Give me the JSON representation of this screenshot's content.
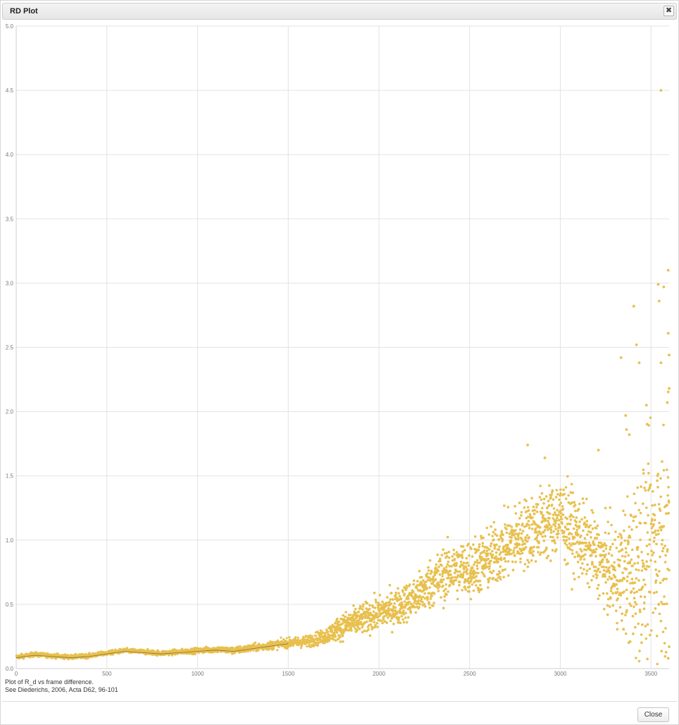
{
  "dialog": {
    "title": "RD Plot",
    "close_icon": "close-icon",
    "close_glyph": "✖",
    "close_button_label": "Close"
  },
  "caption": {
    "line1": "Plot of R_d vs frame difference.",
    "line2": "See Diederichs, 2006, Acta D62, 96-101"
  },
  "chart_data": {
    "type": "scatter",
    "title": "",
    "xlabel": "",
    "ylabel": "",
    "xlim": [
      0,
      3600
    ],
    "ylim": [
      0,
      5.0
    ],
    "xticks": [
      "0",
      "500",
      "1000",
      "1500",
      "2000",
      "2500",
      "3000",
      "3500"
    ],
    "yticks": [
      "0.0",
      "0.5",
      "1.0",
      "1.5",
      "2.0",
      "2.5",
      "3.0",
      "3.5",
      "4.0",
      "4.5",
      "5.0"
    ],
    "grid": true,
    "legend": "none",
    "point_color": "#e8c04e",
    "trend_color": "#333333",
    "trend": {
      "x": [
        0,
        100,
        200,
        300,
        400,
        500,
        600,
        700,
        800,
        900,
        1000,
        1100,
        1200,
        1300,
        1400,
        1500,
        1600,
        1700,
        1800,
        1900,
        2000,
        2100,
        2200,
        2300,
        2400,
        2500,
        2600,
        2700,
        2800,
        2900,
        3000,
        3100,
        3200,
        3300,
        3400,
        3500,
        3600
      ],
      "y": [
        0.09,
        0.11,
        0.1,
        0.09,
        0.1,
        0.12,
        0.14,
        0.13,
        0.12,
        0.13,
        0.14,
        0.15,
        0.14,
        0.16,
        0.18,
        0.2,
        0.21,
        0.25,
        0.33,
        0.38,
        0.43,
        0.48,
        0.55,
        0.68,
        0.76,
        0.78,
        0.84,
        0.95,
        1.05,
        1.12,
        1.18,
        1.02,
        0.88,
        0.72,
        0.78,
        0.95,
        1.05
      ]
    },
    "spread": {
      "x": [
        0,
        500,
        1000,
        1500,
        1700,
        1800,
        2000,
        2200,
        2300,
        2500,
        2700,
        2900,
        3000,
        3100,
        3200,
        3300,
        3400,
        3500,
        3600
      ],
      "y": [
        0.012,
        0.012,
        0.015,
        0.025,
        0.04,
        0.07,
        0.09,
        0.11,
        0.14,
        0.16,
        0.18,
        0.2,
        0.22,
        0.22,
        0.2,
        0.25,
        0.45,
        0.55,
        0.6
      ]
    },
    "point_count": 3600,
    "outliers": [
      {
        "x": 3555,
        "y": 4.5
      },
      {
        "x": 3595,
        "y": 3.1
      },
      {
        "x": 3540,
        "y": 2.99
      },
      {
        "x": 3570,
        "y": 2.97
      },
      {
        "x": 3545,
        "y": 2.86
      },
      {
        "x": 3405,
        "y": 2.82
      },
      {
        "x": 3595,
        "y": 2.61
      },
      {
        "x": 3420,
        "y": 2.52
      },
      {
        "x": 3335,
        "y": 2.42
      },
      {
        "x": 3600,
        "y": 2.44
      },
      {
        "x": 3435,
        "y": 2.38
      },
      {
        "x": 3555,
        "y": 2.38
      },
      {
        "x": 3600,
        "y": 2.18
      },
      {
        "x": 3590,
        "y": 2.07
      },
      {
        "x": 3475,
        "y": 2.05
      },
      {
        "x": 3360,
        "y": 1.97
      },
      {
        "x": 3380,
        "y": 1.82
      },
      {
        "x": 3365,
        "y": 1.86
      },
      {
        "x": 2820,
        "y": 1.74
      },
      {
        "x": 3210,
        "y": 1.7
      },
      {
        "x": 2915,
        "y": 1.64
      },
      {
        "x": 3595,
        "y": 0.08
      },
      {
        "x": 3600,
        "y": 0.17
      },
      {
        "x": 3385,
        "y": 0.21
      }
    ]
  }
}
